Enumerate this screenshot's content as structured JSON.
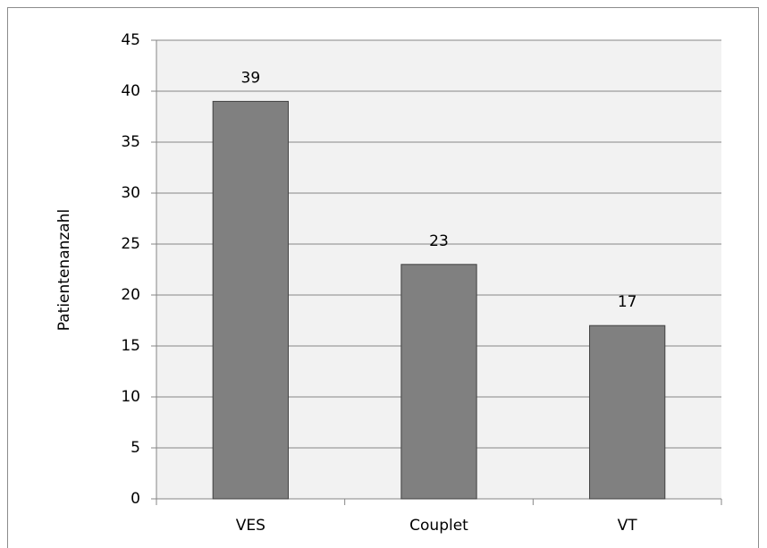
{
  "chart_data": {
    "type": "bar",
    "y_label": "Patientenanzahl",
    "categories": [
      "VES",
      "Couplet",
      "VT"
    ],
    "values": [
      39,
      23,
      17
    ],
    "color": "#808080",
    "ylim": [
      0,
      45
    ],
    "yticks": [
      0,
      5,
      10,
      15,
      20,
      25,
      30,
      35,
      40,
      45
    ],
    "grid": true
  }
}
